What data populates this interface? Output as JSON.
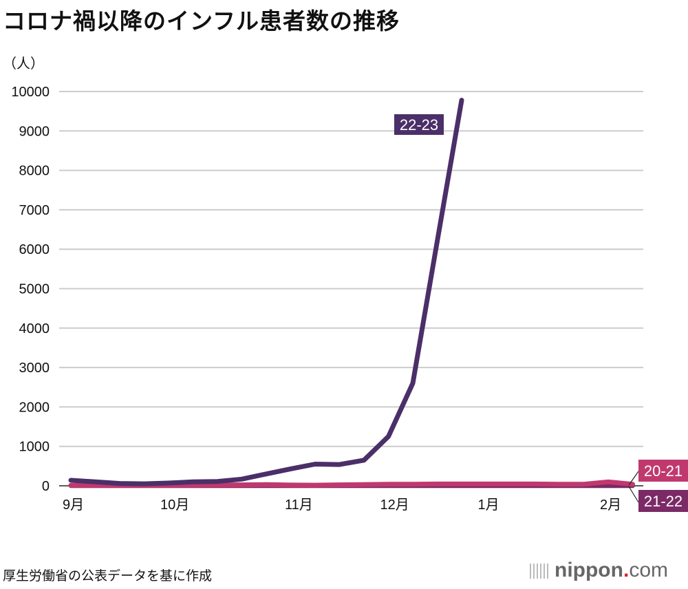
{
  "title": "コロナ禍以降のインフル患者数の推移",
  "unit": "（人）",
  "source": "厚生労働省の公表データを基に作成",
  "logo": {
    "name": "nippon",
    "dot": ".",
    "com": "com"
  },
  "chart_data": {
    "type": "line",
    "title": "コロナ禍以降のインフル患者数の推移",
    "ylabel": "（人）",
    "ylim": [
      0,
      10000
    ],
    "yticks": [
      0,
      1000,
      2000,
      3000,
      4000,
      5000,
      6000,
      7000,
      8000,
      9000,
      10000
    ],
    "xlim": [
      0,
      23.5
    ],
    "xticks": [
      {
        "x": 0,
        "label": "9月"
      },
      {
        "x": 4,
        "label": "10月"
      },
      {
        "x": 9.1,
        "label": "11月"
      },
      {
        "x": 13,
        "label": "12月"
      },
      {
        "x": 17,
        "label": "1月"
      },
      {
        "x": 22,
        "label": "2月"
      }
    ],
    "grid": true,
    "series": [
      {
        "name": "20-21",
        "color": "#c0396e",
        "x": [
          0,
          1,
          2,
          3,
          4,
          5,
          6,
          7,
          8,
          9,
          10,
          11,
          12,
          13,
          14,
          15,
          16,
          17,
          18,
          19,
          20,
          21,
          22,
          23
        ],
        "values": [
          10,
          10,
          10,
          10,
          10,
          15,
          20,
          25,
          30,
          20,
          15,
          25,
          30,
          40,
          40,
          45,
          45,
          45,
          45,
          45,
          40,
          40,
          100,
          40
        ]
      },
      {
        "name": "21-22",
        "color": "#7b2a66",
        "x": [
          0,
          1,
          2,
          3,
          4,
          5,
          6,
          7,
          8,
          9,
          10,
          11,
          12,
          13,
          14,
          15,
          16,
          17,
          18,
          19,
          20,
          21,
          22,
          23
        ],
        "values": [
          5,
          5,
          5,
          5,
          5,
          5,
          5,
          5,
          5,
          5,
          5,
          5,
          5,
          5,
          5,
          5,
          5,
          5,
          5,
          5,
          5,
          5,
          5,
          5
        ]
      },
      {
        "name": "22-23",
        "color": "#4b2f68",
        "x": [
          0,
          1,
          2,
          3,
          4,
          5,
          6,
          7,
          8,
          9,
          10,
          11,
          12,
          13,
          14,
          15,
          16
        ],
        "values": [
          140,
          100,
          60,
          50,
          70,
          100,
          110,
          170,
          300,
          430,
          550,
          540,
          650,
          1250,
          2600,
          6200,
          9780
        ]
      }
    ]
  }
}
